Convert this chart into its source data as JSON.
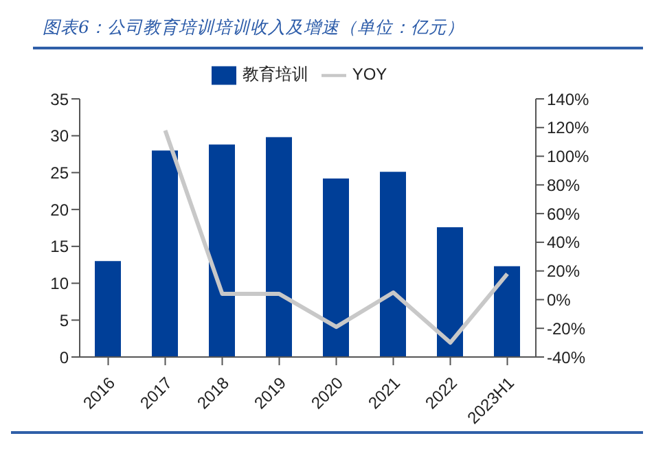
{
  "chart_data": {
    "type": "bar",
    "title": "图表6：公司教育培训培训收入及增速（单位：亿元）",
    "categories": [
      "2016",
      "2017",
      "2018",
      "2019",
      "2020",
      "2021",
      "2022",
      "2023H1"
    ],
    "series": [
      {
        "name": "教育培训",
        "color": "#003f98",
        "values": [
          13,
          28,
          28.8,
          29.8,
          24.2,
          25.1,
          17.6,
          12.3
        ]
      },
      {
        "name": "YOY",
        "type": "line",
        "axis": "y2",
        "color": "#c8c8c8",
        "values": [
          null,
          118,
          4,
          4,
          -19,
          5,
          -30,
          18
        ]
      }
    ],
    "ylim": [
      0,
      35
    ],
    "yticks": [
      0,
      5,
      10,
      15,
      20,
      25,
      30,
      35
    ],
    "y2lim": [
      -40,
      140
    ],
    "y2ticks": [
      {
        "value": -40,
        "label": "-40%"
      },
      {
        "value": -20,
        "label": "-20%"
      },
      {
        "value": 0,
        "label": "0%"
      },
      {
        "value": 20,
        "label": "20%"
      },
      {
        "value": 40,
        "label": "40%"
      },
      {
        "value": 60,
        "label": "60%"
      },
      {
        "value": 80,
        "label": "80%"
      },
      {
        "value": 100,
        "label": "100%"
      },
      {
        "value": 120,
        "label": "120%"
      },
      {
        "value": 140,
        "label": "140%"
      }
    ],
    "legend": "top",
    "grid": false,
    "marker": "none"
  }
}
